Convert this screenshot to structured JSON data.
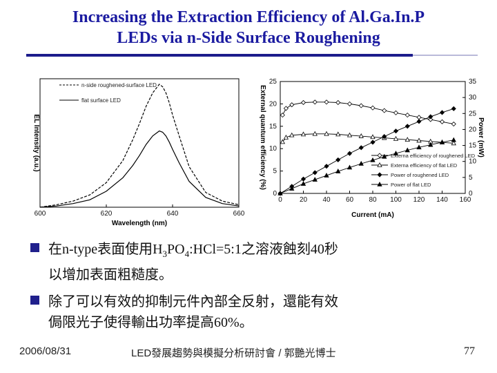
{
  "slide": {
    "title_line1": "Increasing the Extraction Efficiency of Al.Ga.In.P",
    "title_line2": "LEDs via n-Side Surface Roughening",
    "bullets": [
      {
        "prefix": "在n-type表面使用H",
        "sub1": "3",
        "mid": "PO",
        "sub2": "4",
        "suffix": ":HCl=5:1之溶液蝕刻40秒",
        "line2": "以增加表面粗糙度。"
      },
      {
        "line1": "除了可以有效的抑制元件內部全反射，還能有效",
        "line2": "侷限光子使得輸出功率提高60%。"
      }
    ],
    "footer": {
      "date": "2006/08/31",
      "center": "LED發展趨勢與模擬分析研討會 / 郭艷光博士",
      "page": "77"
    }
  },
  "chart_data": [
    {
      "type": "line",
      "xlabel": "Wavelength (nm)",
      "ylabel": "EL Intensity (a.u.)",
      "xlim": [
        600,
        660
      ],
      "xticks": [
        "600",
        "620",
        "640",
        "660"
      ],
      "legend": [
        "n-side roughened-surface LED",
        "flat surface LED"
      ],
      "legend_position": "top-left",
      "series": [
        {
          "name": "n-side roughened-surface LED",
          "style": "dashed",
          "x": [
            600,
            605,
            610,
            615,
            620,
            625,
            628,
            630,
            632,
            634,
            636,
            637,
            638,
            639,
            640,
            642,
            645,
            650,
            655,
            660
          ],
          "y": [
            0.0,
            0.02,
            0.05,
            0.1,
            0.2,
            0.38,
            0.55,
            0.68,
            0.82,
            0.93,
            1.0,
            0.98,
            0.93,
            0.85,
            0.75,
            0.58,
            0.33,
            0.12,
            0.05,
            0.02
          ]
        },
        {
          "name": "flat surface LED",
          "style": "solid",
          "x": [
            600,
            605,
            610,
            615,
            620,
            625,
            628,
            630,
            632,
            634,
            636,
            637,
            638,
            639,
            640,
            642,
            645,
            650,
            655,
            660
          ],
          "y": [
            0.0,
            0.01,
            0.03,
            0.06,
            0.13,
            0.24,
            0.34,
            0.42,
            0.51,
            0.58,
            0.62,
            0.61,
            0.58,
            0.53,
            0.47,
            0.36,
            0.21,
            0.08,
            0.03,
            0.01
          ]
        }
      ]
    },
    {
      "type": "line",
      "xlabel": "Current (mA)",
      "ylabel": "External quantum efficiency (%)",
      "y2label": "Power (mW)",
      "xlim": [
        0,
        160
      ],
      "ylim": [
        0,
        25
      ],
      "y2lim": [
        0,
        35
      ],
      "xticks": [
        "0",
        "20",
        "40",
        "60",
        "80",
        "100",
        "120",
        "140",
        "160"
      ],
      "yticks": [
        "0",
        "5",
        "10",
        "15",
        "20",
        "25"
      ],
      "y2ticks": [
        "0",
        "5",
        "10",
        "15",
        "20",
        "25",
        "30",
        "35"
      ],
      "legend": [
        "Externa efficiency of roughened LED",
        "Externa efficiency of flat LED",
        "Power of roughened LED",
        "Power of flat LED"
      ],
      "legend_position": "bottom-right",
      "series": [
        {
          "name": "Externa efficiency of roughened LED",
          "axis": "left",
          "marker": "diamond-open",
          "x": [
            2,
            5,
            10,
            20,
            30,
            40,
            50,
            60,
            70,
            80,
            90,
            100,
            110,
            120,
            130,
            140,
            150
          ],
          "y": [
            17.5,
            19.0,
            19.8,
            20.3,
            20.4,
            20.4,
            20.3,
            20.0,
            19.6,
            19.1,
            18.5,
            18.0,
            17.5,
            17.0,
            16.5,
            16.0,
            15.5
          ]
        },
        {
          "name": "Externa efficiency of flat LED",
          "axis": "left",
          "marker": "triangle-open",
          "x": [
            2,
            5,
            10,
            20,
            30,
            40,
            50,
            60,
            70,
            80,
            90,
            100,
            110,
            120,
            130,
            140,
            150
          ],
          "y": [
            11.5,
            12.5,
            13.0,
            13.2,
            13.3,
            13.3,
            13.2,
            13.0,
            12.8,
            12.6,
            12.4,
            12.2,
            12.0,
            11.8,
            11.6,
            11.4,
            11.2
          ]
        },
        {
          "name": "Power of roughened LED",
          "axis": "right",
          "marker": "diamond-filled",
          "x": [
            0,
            10,
            20,
            30,
            40,
            50,
            60,
            70,
            80,
            90,
            100,
            110,
            120,
            130,
            140,
            150
          ],
          "y": [
            0,
            2.2,
            4.5,
            6.5,
            8.5,
            10.5,
            12.5,
            14.3,
            16.0,
            17.8,
            19.5,
            21.0,
            22.5,
            24.0,
            25.3,
            26.5
          ]
        },
        {
          "name": "Power of flat LED",
          "axis": "right",
          "marker": "triangle-filled",
          "x": [
            0,
            10,
            20,
            30,
            40,
            50,
            60,
            70,
            80,
            90,
            100,
            110,
            120,
            130,
            140,
            150
          ],
          "y": [
            0,
            1.5,
            3.0,
            4.3,
            5.6,
            6.9,
            8.1,
            9.3,
            10.4,
            11.5,
            12.5,
            13.5,
            14.4,
            15.2,
            16.0,
            16.7
          ]
        }
      ]
    }
  ]
}
